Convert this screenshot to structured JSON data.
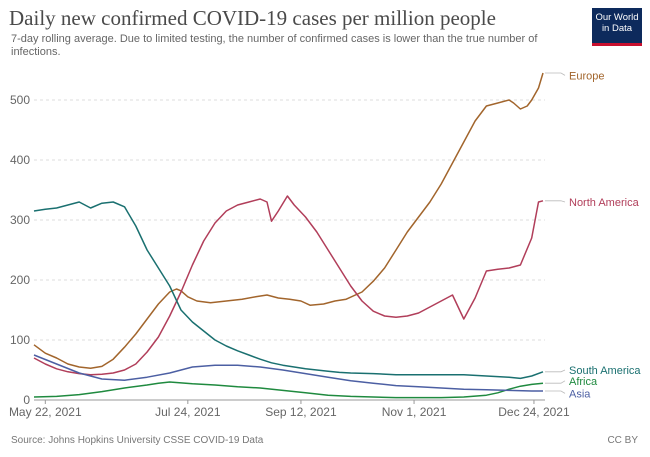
{
  "header": {
    "title": "Daily new confirmed COVID-19 cases per million people",
    "subtitle": "7-day rolling average. Due to limited testing, the number of confirmed cases is lower than the true number of infections.",
    "logo_line1": "Our World",
    "logo_line2": "in Data"
  },
  "footer": {
    "source": "Source: Johns Hopkins University CSSE COVID-19 Data",
    "license": "CC BY"
  },
  "chart_data": {
    "type": "line",
    "title": "Daily new confirmed COVID-19 cases per million people",
    "subtitle": "7-day rolling average. Due to limited testing, the number of confirmed cases is lower than the true number of infections.",
    "xlabel": "",
    "ylabel": "",
    "x_ticks": [
      "May 22, 2021",
      "Jul 24, 2021",
      "Sep 12, 2021",
      "Nov 1, 2021",
      "Dec 24, 2021"
    ],
    "x_tick_days": [
      5,
      68,
      118,
      168,
      221
    ],
    "xlim_days": [
      0,
      225
    ],
    "y_ticks": [
      0,
      100,
      200,
      300,
      400,
      500
    ],
    "ylim": [
      0,
      550
    ],
    "grid": "horizontal dashed",
    "legend": "labels at line ends (right)",
    "series": [
      {
        "name": "Europe",
        "color": "#a2652c",
        "points": [
          [
            0,
            92
          ],
          [
            5,
            78
          ],
          [
            10,
            70
          ],
          [
            15,
            60
          ],
          [
            20,
            55
          ],
          [
            25,
            53
          ],
          [
            30,
            56
          ],
          [
            35,
            68
          ],
          [
            40,
            88
          ],
          [
            45,
            110
          ],
          [
            50,
            135
          ],
          [
            55,
            160
          ],
          [
            60,
            180
          ],
          [
            63,
            185
          ],
          [
            65,
            182
          ],
          [
            68,
            172
          ],
          [
            72,
            165
          ],
          [
            78,
            162
          ],
          [
            85,
            165
          ],
          [
            92,
            168
          ],
          [
            98,
            172
          ],
          [
            103,
            175
          ],
          [
            108,
            170
          ],
          [
            113,
            168
          ],
          [
            118,
            165
          ],
          [
            122,
            158
          ],
          [
            128,
            160
          ],
          [
            133,
            165
          ],
          [
            138,
            168
          ],
          [
            145,
            180
          ],
          [
            150,
            198
          ],
          [
            155,
            220
          ],
          [
            160,
            250
          ],
          [
            165,
            280
          ],
          [
            170,
            305
          ],
          [
            175,
            330
          ],
          [
            180,
            360
          ],
          [
            185,
            395
          ],
          [
            190,
            430
          ],
          [
            195,
            465
          ],
          [
            200,
            490
          ],
          [
            205,
            495
          ],
          [
            210,
            500
          ],
          [
            212,
            495
          ],
          [
            215,
            485
          ],
          [
            218,
            490
          ],
          [
            220,
            500
          ],
          [
            223,
            520
          ],
          [
            225,
            545
          ]
        ]
      },
      {
        "name": "North America",
        "color": "#b13e5a",
        "points": [
          [
            0,
            70
          ],
          [
            5,
            60
          ],
          [
            10,
            52
          ],
          [
            15,
            47
          ],
          [
            20,
            44
          ],
          [
            25,
            42
          ],
          [
            30,
            43
          ],
          [
            35,
            45
          ],
          [
            40,
            50
          ],
          [
            45,
            60
          ],
          [
            50,
            80
          ],
          [
            55,
            105
          ],
          [
            60,
            140
          ],
          [
            65,
            180
          ],
          [
            70,
            225
          ],
          [
            75,
            265
          ],
          [
            80,
            295
          ],
          [
            85,
            315
          ],
          [
            90,
            325
          ],
          [
            95,
            330
          ],
          [
            100,
            335
          ],
          [
            103,
            330
          ],
          [
            105,
            298
          ],
          [
            108,
            315
          ],
          [
            112,
            340
          ],
          [
            115,
            325
          ],
          [
            120,
            305
          ],
          [
            125,
            280
          ],
          [
            130,
            250
          ],
          [
            135,
            220
          ],
          [
            140,
            190
          ],
          [
            145,
            165
          ],
          [
            150,
            148
          ],
          [
            155,
            140
          ],
          [
            160,
            138
          ],
          [
            165,
            140
          ],
          [
            170,
            145
          ],
          [
            175,
            155
          ],
          [
            180,
            165
          ],
          [
            185,
            175
          ],
          [
            190,
            135
          ],
          [
            195,
            170
          ],
          [
            200,
            215
          ],
          [
            205,
            218
          ],
          [
            210,
            220
          ],
          [
            215,
            225
          ],
          [
            220,
            270
          ],
          [
            223,
            330
          ],
          [
            225,
            332
          ]
        ]
      },
      {
        "name": "South America",
        "color": "#1a7070",
        "points": [
          [
            0,
            315
          ],
          [
            5,
            318
          ],
          [
            10,
            320
          ],
          [
            15,
            325
          ],
          [
            20,
            330
          ],
          [
            25,
            320
          ],
          [
            30,
            328
          ],
          [
            35,
            330
          ],
          [
            40,
            322
          ],
          [
            45,
            290
          ],
          [
            50,
            250
          ],
          [
            55,
            220
          ],
          [
            60,
            190
          ],
          [
            65,
            150
          ],
          [
            70,
            130
          ],
          [
            75,
            115
          ],
          [
            80,
            100
          ],
          [
            85,
            90
          ],
          [
            90,
            82
          ],
          [
            95,
            75
          ],
          [
            100,
            68
          ],
          [
            105,
            62
          ],
          [
            110,
            58
          ],
          [
            115,
            55
          ],
          [
            120,
            52
          ],
          [
            125,
            50
          ],
          [
            130,
            48
          ],
          [
            135,
            46
          ],
          [
            140,
            45
          ],
          [
            150,
            44
          ],
          [
            160,
            42
          ],
          [
            170,
            42
          ],
          [
            180,
            42
          ],
          [
            190,
            42
          ],
          [
            200,
            40
          ],
          [
            210,
            38
          ],
          [
            215,
            36
          ],
          [
            220,
            40
          ],
          [
            225,
            47
          ]
        ]
      },
      {
        "name": "Africa",
        "color": "#1f8a3f",
        "points": [
          [
            0,
            5
          ],
          [
            10,
            6
          ],
          [
            20,
            9
          ],
          [
            30,
            14
          ],
          [
            40,
            20
          ],
          [
            50,
            25
          ],
          [
            55,
            28
          ],
          [
            60,
            30
          ],
          [
            70,
            27
          ],
          [
            80,
            25
          ],
          [
            90,
            22
          ],
          [
            100,
            20
          ],
          [
            110,
            16
          ],
          [
            120,
            12
          ],
          [
            130,
            8
          ],
          [
            140,
            6
          ],
          [
            150,
            5
          ],
          [
            160,
            4
          ],
          [
            170,
            4
          ],
          [
            180,
            4
          ],
          [
            190,
            5
          ],
          [
            200,
            8
          ],
          [
            205,
            12
          ],
          [
            210,
            18
          ],
          [
            215,
            23
          ],
          [
            220,
            26
          ],
          [
            225,
            28
          ]
        ]
      },
      {
        "name": "Asia",
        "color": "#4c5fa3",
        "points": [
          [
            0,
            75
          ],
          [
            10,
            60
          ],
          [
            20,
            45
          ],
          [
            30,
            35
          ],
          [
            40,
            33
          ],
          [
            50,
            38
          ],
          [
            60,
            45
          ],
          [
            70,
            55
          ],
          [
            80,
            58
          ],
          [
            90,
            58
          ],
          [
            100,
            55
          ],
          [
            110,
            50
          ],
          [
            120,
            44
          ],
          [
            130,
            38
          ],
          [
            140,
            32
          ],
          [
            150,
            28
          ],
          [
            160,
            24
          ],
          [
            170,
            22
          ],
          [
            180,
            20
          ],
          [
            190,
            18
          ],
          [
            200,
            17
          ],
          [
            210,
            16
          ],
          [
            220,
            15
          ],
          [
            225,
            15
          ]
        ]
      }
    ],
    "end_labels": [
      {
        "name": "Europe",
        "label_value": 541
      },
      {
        "name": "North America",
        "label_value": 330
      },
      {
        "name": "South America",
        "label_value": 50
      },
      {
        "name": "Africa",
        "label_value": 32
      },
      {
        "name": "Asia",
        "label_value": 11
      }
    ]
  }
}
